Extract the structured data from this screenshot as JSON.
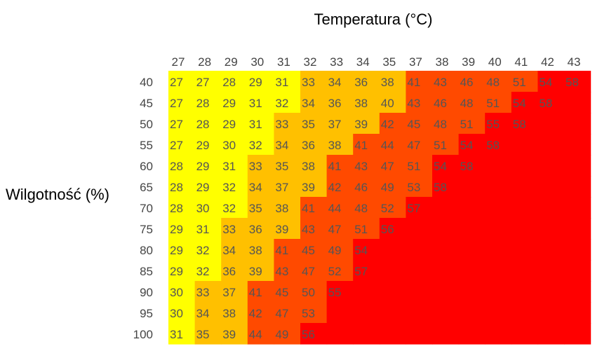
{
  "chart_data": {
    "type": "heatmap",
    "title": "Temperatura (°C)",
    "xlabel": "Temperatura (°C)",
    "ylabel": "Wilgotność (%)",
    "x_ticks": [
      "27",
      "28",
      "29",
      "30",
      "31",
      "32",
      "33",
      "34",
      "35",
      "37",
      "38",
      "39",
      "40",
      "41",
      "42",
      "43"
    ],
    "y_ticks": [
      "40",
      "45",
      "50",
      "55",
      "60",
      "65",
      "70",
      "75",
      "80",
      "85",
      "90",
      "95",
      "100"
    ],
    "values": [
      [
        27,
        27,
        28,
        29,
        31,
        33,
        34,
        36,
        38,
        41,
        43,
        46,
        48,
        51,
        54,
        58
      ],
      [
        27,
        28,
        29,
        31,
        32,
        34,
        36,
        38,
        40,
        43,
        46,
        48,
        51,
        54,
        58,
        null
      ],
      [
        27,
        28,
        29,
        31,
        33,
        35,
        37,
        39,
        42,
        45,
        48,
        51,
        55,
        58,
        null,
        null
      ],
      [
        27,
        29,
        30,
        32,
        34,
        36,
        38,
        41,
        44,
        47,
        51,
        54,
        58,
        null,
        null,
        null
      ],
      [
        28,
        29,
        31,
        33,
        35,
        38,
        41,
        43,
        47,
        51,
        54,
        58,
        null,
        null,
        null,
        null
      ],
      [
        28,
        29,
        32,
        34,
        37,
        39,
        42,
        46,
        49,
        53,
        58,
        null,
        null,
        null,
        null,
        null
      ],
      [
        28,
        30,
        32,
        35,
        38,
        41,
        44,
        48,
        52,
        57,
        null,
        null,
        null,
        null,
        null,
        null
      ],
      [
        29,
        31,
        33,
        36,
        39,
        43,
        47,
        51,
        56,
        null,
        null,
        null,
        null,
        null,
        null,
        null
      ],
      [
        29,
        32,
        34,
        38,
        41,
        45,
        49,
        54,
        null,
        null,
        null,
        null,
        null,
        null,
        null,
        null
      ],
      [
        29,
        32,
        36,
        39,
        43,
        47,
        52,
        57,
        null,
        null,
        null,
        null,
        null,
        null,
        null,
        null
      ],
      [
        30,
        33,
        37,
        41,
        45,
        50,
        55,
        null,
        null,
        null,
        null,
        null,
        null,
        null,
        null,
        null
      ],
      [
        30,
        34,
        38,
        42,
        47,
        53,
        null,
        null,
        null,
        null,
        null,
        null,
        null,
        null,
        null,
        null
      ],
      [
        31,
        35,
        39,
        44,
        49,
        56,
        null,
        null,
        null,
        null,
        null,
        null,
        null,
        null,
        null,
        null
      ]
    ],
    "color_bands": [
      {
        "max": 32,
        "color": "#FFFF00"
      },
      {
        "max": 40,
        "color": "#FFC000"
      },
      {
        "max": 53,
        "color": "#FF4A00"
      },
      {
        "max": 999,
        "color": "#FF0000"
      }
    ],
    "empty_color": "#FF0000",
    "grid": false,
    "legend": "none"
  }
}
